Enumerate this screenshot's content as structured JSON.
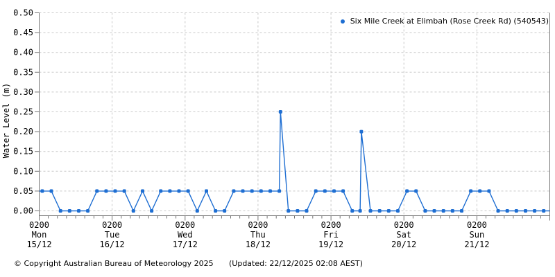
{
  "chart_data": {
    "type": "line",
    "title": "",
    "ylabel": "Water Level (m)",
    "ylim": [
      0.0,
      0.5
    ],
    "ytick_step": 0.05,
    "y_tick_labels": [
      "0.00",
      "0.05",
      "0.10",
      "0.15",
      "0.20",
      "0.25",
      "0.30",
      "0.35",
      "0.40",
      "0.45",
      "0.50"
    ],
    "x_domain_hours": 168,
    "x_minor_tick_hours": 3,
    "x_major_tick_hours": 24,
    "x_ticks": [
      {
        "time": "0200",
        "day": "Mon",
        "date": "15/12"
      },
      {
        "time": "0200",
        "day": "Tue",
        "date": "16/12"
      },
      {
        "time": "0200",
        "day": "Wed",
        "date": "17/12"
      },
      {
        "time": "0200",
        "day": "Thu",
        "date": "18/12"
      },
      {
        "time": "0200",
        "day": "Fri",
        "date": "19/12"
      },
      {
        "time": "0200",
        "day": "Sat",
        "date": "20/12"
      },
      {
        "time": "0200",
        "day": "Sun",
        "date": "21/12"
      }
    ],
    "grid": "dashed",
    "legend_position": "top-right-inside",
    "colors": {
      "line": "#1e6ed2",
      "grid": "#c8c8c8",
      "axis": "#737373",
      "text": "#000000"
    },
    "series": [
      {
        "name": "Six Mile Creek at Elimbah (Rose Creek Rd) (540543)",
        "color": "#1e6ed2",
        "unit": "m",
        "t_hours_from_mon_0200": [
          1,
          4,
          7,
          10,
          13,
          16,
          19,
          22,
          25,
          28,
          31,
          34,
          37,
          40,
          43,
          46,
          49,
          52,
          55,
          58,
          61,
          64,
          67,
          70,
          73,
          76,
          79,
          79.4,
          82,
          85,
          88,
          91,
          94,
          97,
          100,
          103,
          105.6,
          106,
          109,
          112,
          115,
          118,
          121,
          124,
          127,
          130,
          133,
          136,
          139,
          142,
          145,
          148,
          151,
          154,
          157,
          160,
          163,
          166
        ],
        "values_m": [
          0.05,
          0.05,
          0.0,
          0.0,
          0.0,
          0.0,
          0.05,
          0.05,
          0.05,
          0.05,
          0.0,
          0.05,
          0.0,
          0.05,
          0.05,
          0.05,
          0.05,
          0.0,
          0.05,
          0.0,
          0.0,
          0.05,
          0.05,
          0.05,
          0.05,
          0.05,
          0.05,
          0.25,
          0.0,
          0.0,
          0.0,
          0.05,
          0.05,
          0.05,
          0.05,
          0.0,
          0.0,
          0.2,
          0.0,
          0.0,
          0.0,
          0.0,
          0.05,
          0.05,
          0.0,
          0.0,
          0.0,
          0.0,
          0.0,
          0.05,
          0.05,
          0.05,
          0.0,
          0.0,
          0.0,
          0.0,
          0.0,
          0.0
        ]
      }
    ]
  },
  "footer": {
    "copyright": "© Copyright Australian Bureau of Meteorology 2025",
    "updated": "(Updated: 22/12/2025 02:08 AEST)"
  }
}
